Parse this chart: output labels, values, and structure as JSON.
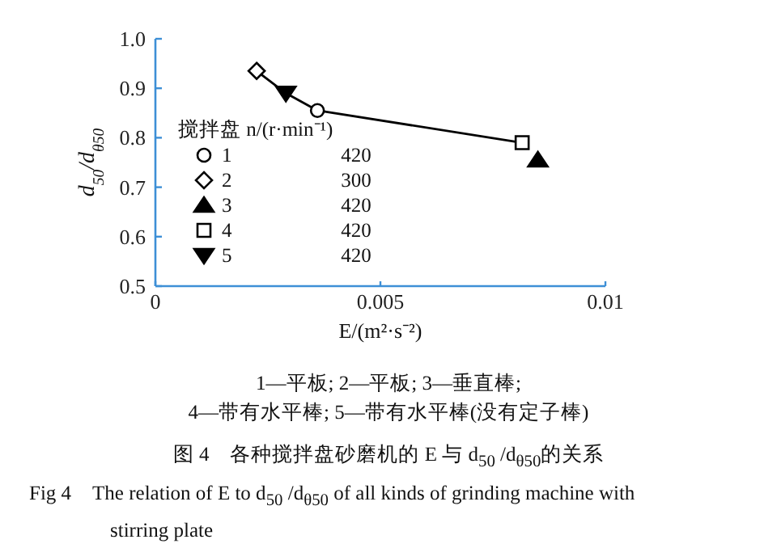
{
  "chart_data": {
    "type": "scatter",
    "xlabel": "E/(m²·s⁻²)",
    "ylabel": "d$_{50}$/d$_{θ50}$",
    "legend_title": "搅拌盘 n/(r·min⁻¹)",
    "legend": "bottom left",
    "xlim": [
      0,
      0.01
    ],
    "xticks": [
      0,
      0.005,
      0.01
    ],
    "ylim": [
      0.5,
      1.0
    ],
    "yticks": [
      0.5,
      0.6,
      0.7,
      0.8,
      0.9,
      {
        "value": 1.0,
        "label": "1.0"
      }
    ],
    "series": [
      {
        "type": "line",
        "color": "#000000",
        "marker": "none",
        "line_style": "solid",
        "x": [
          0.00225,
          0.0029,
          0.0036,
          0.00815
        ],
        "values": [
          0.935,
          0.89,
          0.855,
          0.79
        ]
      },
      {
        "name": "1",
        "color": "#000000",
        "marker": "circle",
        "x": [
          0.0036
        ],
        "values": [
          0.855
        ]
      },
      {
        "name": "2",
        "color": "#000000",
        "marker": "diamond",
        "x": [
          0.00225
        ],
        "values": [
          0.935
        ]
      },
      {
        "name": "3",
        "color": "#000000",
        "marker": "triangle",
        "x": [
          0.0085
        ],
        "values": [
          0.755
        ]
      },
      {
        "name": "4",
        "color": "#000000",
        "marker": "square",
        "x": [
          0.00815
        ],
        "values": [
          0.79
        ]
      },
      {
        "name": "5",
        "color": "#000000",
        "marker": "triangle-down",
        "x": [
          0.0029
        ],
        "values": [
          0.89
        ]
      }
    ],
    "annotations": [
      "420",
      "300",
      "420",
      "420",
      "420",
      "1—平板; 2—平板; 3—垂直棒;",
      "4—带有水平棒; 5—带有水平棒(没有定子棒)",
      "图 4　各种搅拌盘砂磨机的 E 与 d$_{50}$ /d$_{θ50}$的关系",
      "Fig 4　The relation of E to d$_{50}$ /d$_{θ50}$ of all kinds of grinding machine with stirring plate"
    ]
  }
}
